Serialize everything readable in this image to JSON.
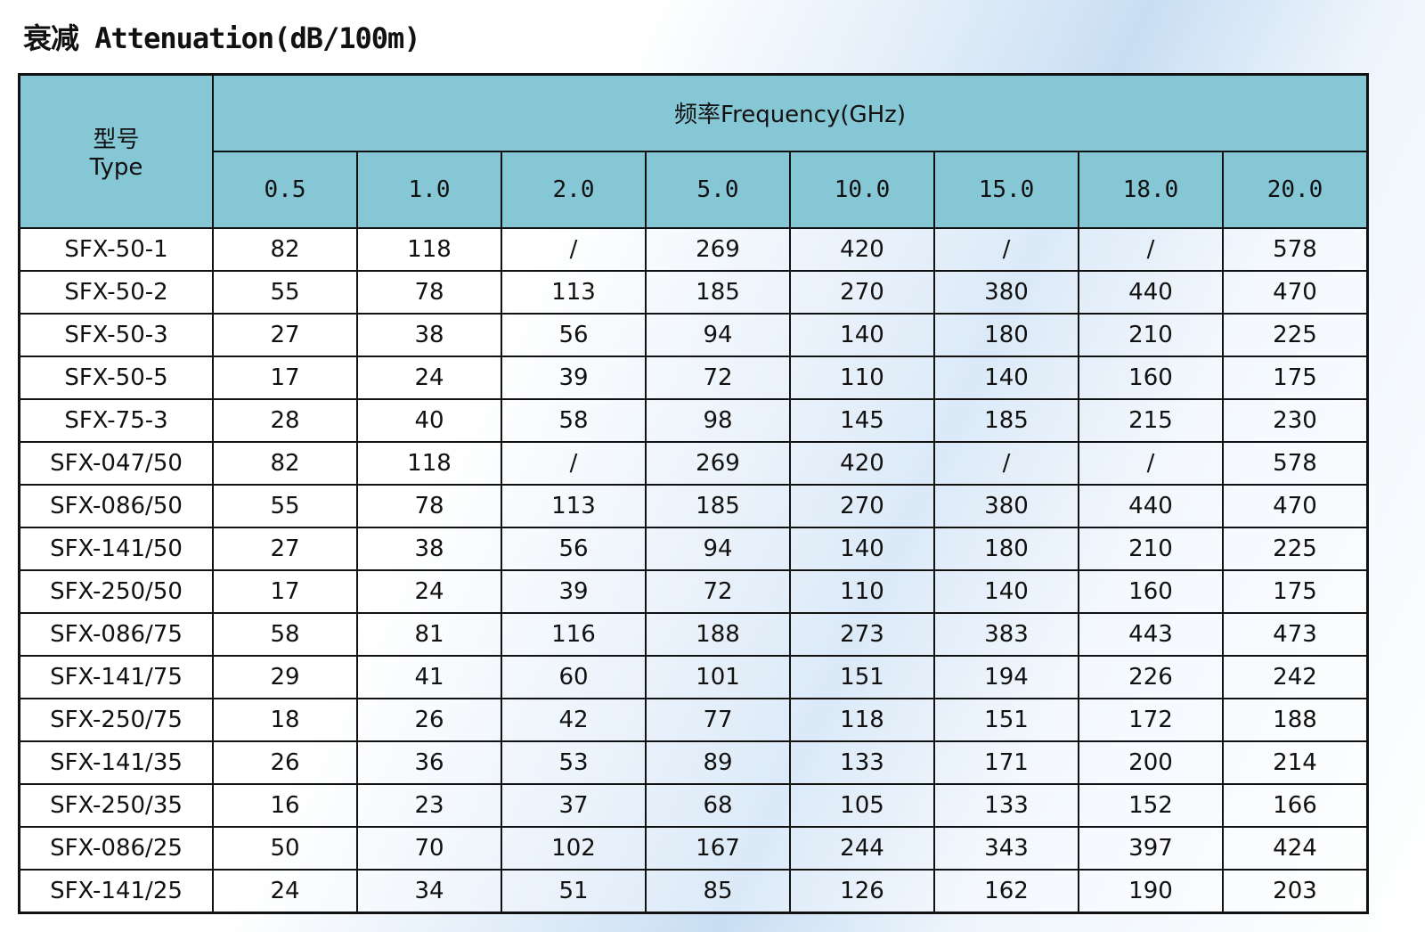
{
  "header": {
    "title": "衰减 Attenuation(dB/100m)"
  },
  "table": {
    "type_header": [
      "型号",
      "Type"
    ],
    "frequency_header": "频率Frequency(GHz)",
    "columns": [
      "0.5",
      "1.0",
      "2.0",
      "5.0",
      "10.0",
      "15.0",
      "18.0",
      "20.0"
    ],
    "rows": [
      [
        "SFX-50-1",
        82,
        118,
        "/",
        269,
        420,
        "/",
        "/",
        578
      ],
      [
        "SFX-50-2",
        55,
        78,
        113,
        185,
        270,
        380,
        440,
        470
      ],
      [
        "SFX-50-3",
        27,
        38,
        56,
        94,
        140,
        180,
        210,
        225
      ],
      [
        "SFX-50-5",
        17,
        24,
        39,
        72,
        110,
        140,
        160,
        175
      ],
      [
        "SFX-75-3",
        28,
        40,
        58,
        98,
        145,
        185,
        215,
        230
      ],
      [
        "SFX-047/50",
        82,
        118,
        "/",
        269,
        420,
        "/",
        "/",
        578
      ],
      [
        "SFX-086/50",
        55,
        78,
        113,
        185,
        270,
        380,
        440,
        470
      ],
      [
        "SFX-141/50",
        27,
        38,
        56,
        94,
        140,
        180,
        210,
        225
      ],
      [
        "SFX-250/50",
        17,
        24,
        39,
        72,
        110,
        140,
        160,
        175
      ],
      [
        "SFX-086/75",
        58,
        81,
        116,
        188,
        273,
        383,
        443,
        473
      ],
      [
        "SFX-141/75",
        29,
        41,
        60,
        101,
        151,
        194,
        226,
        242
      ],
      [
        "SFX-250/75",
        18,
        26,
        42,
        77,
        118,
        151,
        172,
        188
      ],
      [
        "SFX-141/35",
        26,
        36,
        53,
        89,
        133,
        171,
        200,
        214
      ],
      [
        "SFX-250/35",
        16,
        23,
        37,
        68,
        105,
        133,
        152,
        166
      ],
      [
        "SFX-086/25",
        50,
        70,
        102,
        167,
        244,
        343,
        397,
        424
      ],
      [
        "SFX-141/25",
        24,
        34,
        51,
        85,
        126,
        162,
        190,
        203
      ]
    ]
  }
}
